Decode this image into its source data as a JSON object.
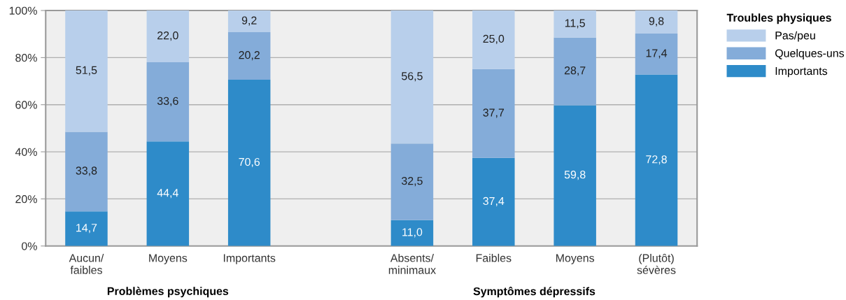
{
  "chart_data": {
    "type": "bar",
    "stacked": true,
    "legend_title": "Troubles physiques",
    "legend": "top right",
    "categories": [
      "Aucun/\nfaibles",
      "Moyens",
      "Importants",
      null,
      "Absents/\nminimaux",
      "Faibles",
      "Moyens",
      "(Plutôt)\nsévères"
    ],
    "series": [
      {
        "name": "Importants",
        "color": "#2e8bc9",
        "values": [
          14.7,
          44.4,
          70.6,
          null,
          11.0,
          37.4,
          59.8,
          72.8
        ],
        "value_labels": [
          "14,7",
          "44,4",
          "70,6",
          null,
          "11,0",
          "37,4",
          "59,8",
          "72,8"
        ]
      },
      {
        "name": "Quelques-uns",
        "color": "#84acd9",
        "values": [
          33.8,
          33.6,
          20.2,
          null,
          32.5,
          37.7,
          28.7,
          17.4
        ],
        "value_labels": [
          "33,8",
          "33,6",
          "20,2",
          null,
          "32,5",
          "37,7",
          "28,7",
          "17,4"
        ]
      },
      {
        "name": "Pas/peu",
        "color": "#b8cfeb",
        "values": [
          51.5,
          22.0,
          9.2,
          null,
          56.5,
          25.0,
          11.5,
          9.8
        ],
        "value_labels": [
          "51,5",
          "22,0",
          "9,2",
          null,
          "56,5",
          "25,0",
          "11,5",
          "9,8"
        ]
      }
    ],
    "ylim": [
      0,
      100
    ],
    "yticks": [
      {
        "value": 0,
        "label": "0%"
      },
      {
        "value": 20,
        "label": "20%"
      },
      {
        "value": 40,
        "label": "40%"
      },
      {
        "value": 60,
        "label": "60%"
      },
      {
        "value": 80,
        "label": "80%"
      },
      {
        "value": 100,
        "label": "100%"
      }
    ],
    "grid": "y",
    "annotations": [
      "Problèmes psychiques",
      "Symptômes dépressifs"
    ]
  }
}
